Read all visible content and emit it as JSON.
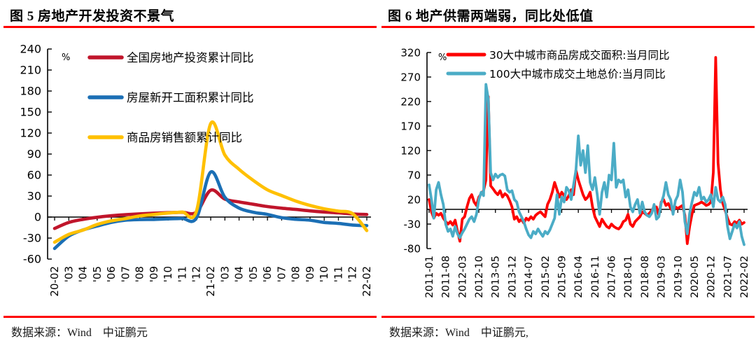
{
  "left_panel": {
    "title": "图 5  房地产开发投资不景气",
    "source": "数据来源：Wind　中证鹏元"
  },
  "right_panel": {
    "title": "图 6  地产供需两端弱，同比处低值",
    "source": "数据来源：Wind　中证鹏元,"
  },
  "accent_color": "#fe0000",
  "chart_data": [
    {
      "type": "line",
      "title": "房地产开发投资不景气",
      "unit": "%",
      "ylim": [
        -60,
        240
      ],
      "ytick_step": 30,
      "grid": false,
      "legend_position": "top-left, stacked",
      "smooth": true,
      "categories": [
        "20-02",
        "'03",
        "'04",
        "'05",
        "'06",
        "'07",
        "'08",
        "'09",
        "'10",
        "'11",
        "'12",
        "21-02",
        "'03",
        "'04",
        "'05",
        "'06",
        "'07",
        "'08",
        "'09",
        "'10",
        "'11",
        "'12",
        "22-02"
      ],
      "series": [
        {
          "name": "全国房地产投资累计同比",
          "color": "#c0152b",
          "values": [
            -16.3,
            -7.7,
            -3.3,
            -0.3,
            1.9,
            3.4,
            4.6,
            5.6,
            6.3,
            6.8,
            7.0,
            38.3,
            25.6,
            21.6,
            18.3,
            15.0,
            12.7,
            10.9,
            8.8,
            7.2,
            6.0,
            4.4,
            3.7
          ]
        },
        {
          "name": "房屋新开工面积累计同比",
          "color": "#1b6fb5",
          "values": [
            -44.9,
            -27.2,
            -18.4,
            -12.8,
            -7.6,
            -4.5,
            -3.6,
            -3.4,
            -2.6,
            -2.0,
            -1.2,
            64.3,
            28.2,
            12.8,
            6.9,
            3.8,
            -0.9,
            -3.2,
            -4.5,
            -7.7,
            -9.1,
            -11.4,
            -12.2
          ]
        },
        {
          "name": "商品房销售额累计同比",
          "color": "#ffc000",
          "values": [
            -35.9,
            -24.7,
            -18.6,
            -10.6,
            -5.4,
            -2.1,
            1.6,
            3.7,
            5.8,
            7.2,
            8.7,
            133.4,
            88.5,
            68.2,
            52.4,
            38.9,
            30.7,
            22.8,
            16.6,
            11.8,
            8.5,
            4.8,
            -19.3
          ]
        }
      ]
    },
    {
      "type": "line",
      "title": "地产供需两端弱，同比处低值",
      "unit": "%",
      "ylim": [
        -80,
        320
      ],
      "ytick_step": 50,
      "grid": false,
      "legend_position": "top, stacked",
      "smooth": false,
      "x_start": "2011-01",
      "x_end": "2022-02",
      "frequency": "monthly",
      "xtick_every": 7,
      "xtick_labels": [
        "2011-01",
        "2011-08",
        "2012-03",
        "2012-10",
        "2013-05",
        "2013-12",
        "2014-07",
        "2015-02",
        "2015-09",
        "2016-04",
        "2016-11",
        "2017-06",
        "2018-01",
        "2018-08",
        "2019-03",
        "2019-10",
        "2020-05",
        "2020-12",
        "2021-07",
        "2022-02"
      ],
      "series": [
        {
          "name": "30大中城市商品房成交面积:当月同比",
          "color": "#fd0100",
          "values": [
            20,
            -5,
            -18,
            -8,
            -12,
            -8,
            -18,
            -25,
            -30,
            -25,
            -32,
            -22,
            -45,
            -65,
            -20,
            -15,
            5,
            22,
            30,
            15,
            8,
            25,
            32,
            38,
            60,
            230,
            48,
            42,
            35,
            30,
            38,
            25,
            32,
            28,
            18,
            5,
            -20,
            -15,
            -25,
            -20,
            -28,
            -18,
            -22,
            -15,
            -20,
            -12,
            -8,
            -5,
            -10,
            -15,
            10,
            20,
            35,
            55,
            40,
            25,
            35,
            28,
            20,
            28,
            40,
            30,
            80,
            60,
            45,
            30,
            20,
            25,
            35,
            5,
            -15,
            -25,
            -35,
            -20,
            -28,
            -35,
            -38,
            -30,
            -35,
            -38,
            -40,
            -35,
            -25,
            -22,
            -10,
            -30,
            -35,
            -25,
            -20,
            -15,
            -5,
            -8,
            -12,
            -8,
            -2,
            5,
            5,
            -12,
            15,
            20,
            8,
            12,
            2,
            -5,
            5,
            2,
            5,
            8,
            -12,
            -70,
            -35,
            -10,
            8,
            10,
            12,
            15,
            12,
            8,
            10,
            15,
            75,
            310,
            95,
            40,
            12,
            -2,
            -18,
            -30,
            -32,
            -25,
            -28,
            -22,
            -30,
            -27
          ]
        },
        {
          "name": "100大中城市成交土地总价:当月同比",
          "color": "#4bacc6",
          "values": [
            50,
            20,
            -18,
            40,
            55,
            30,
            10,
            -30,
            -45,
            -40,
            -55,
            -35,
            -50,
            -58,
            -48,
            -40,
            -30,
            -20,
            -15,
            -25,
            -10,
            20,
            35,
            28,
            255,
            225,
            75,
            60,
            72,
            65,
            70,
            72,
            68,
            40,
            35,
            38,
            20,
            15,
            -5,
            -15,
            -25,
            -40,
            -52,
            -58,
            -45,
            -50,
            -40,
            -48,
            -55,
            -45,
            -50,
            -42,
            -30,
            -18,
            30,
            -10,
            25,
            15,
            45,
            38,
            20,
            50,
            80,
            150,
            90,
            120,
            75,
            130,
            55,
            40,
            65,
            30,
            -10,
            35,
            55,
            25,
            70,
            60,
            135,
            45,
            60,
            55,
            60,
            25,
            40,
            5,
            -5,
            10,
            20,
            -8,
            15,
            -5,
            -12,
            -15,
            -8,
            10,
            -20,
            -15,
            12,
            28,
            55,
            30,
            20,
            -10,
            18,
            28,
            60,
            35,
            -25,
            -50,
            -8,
            15,
            35,
            28,
            45,
            20,
            25,
            15,
            20,
            30,
            5,
            45,
            20,
            15,
            25,
            10,
            -35,
            -60,
            -45,
            -30,
            -38,
            -25,
            -55,
            -72
          ]
        }
      ]
    }
  ]
}
